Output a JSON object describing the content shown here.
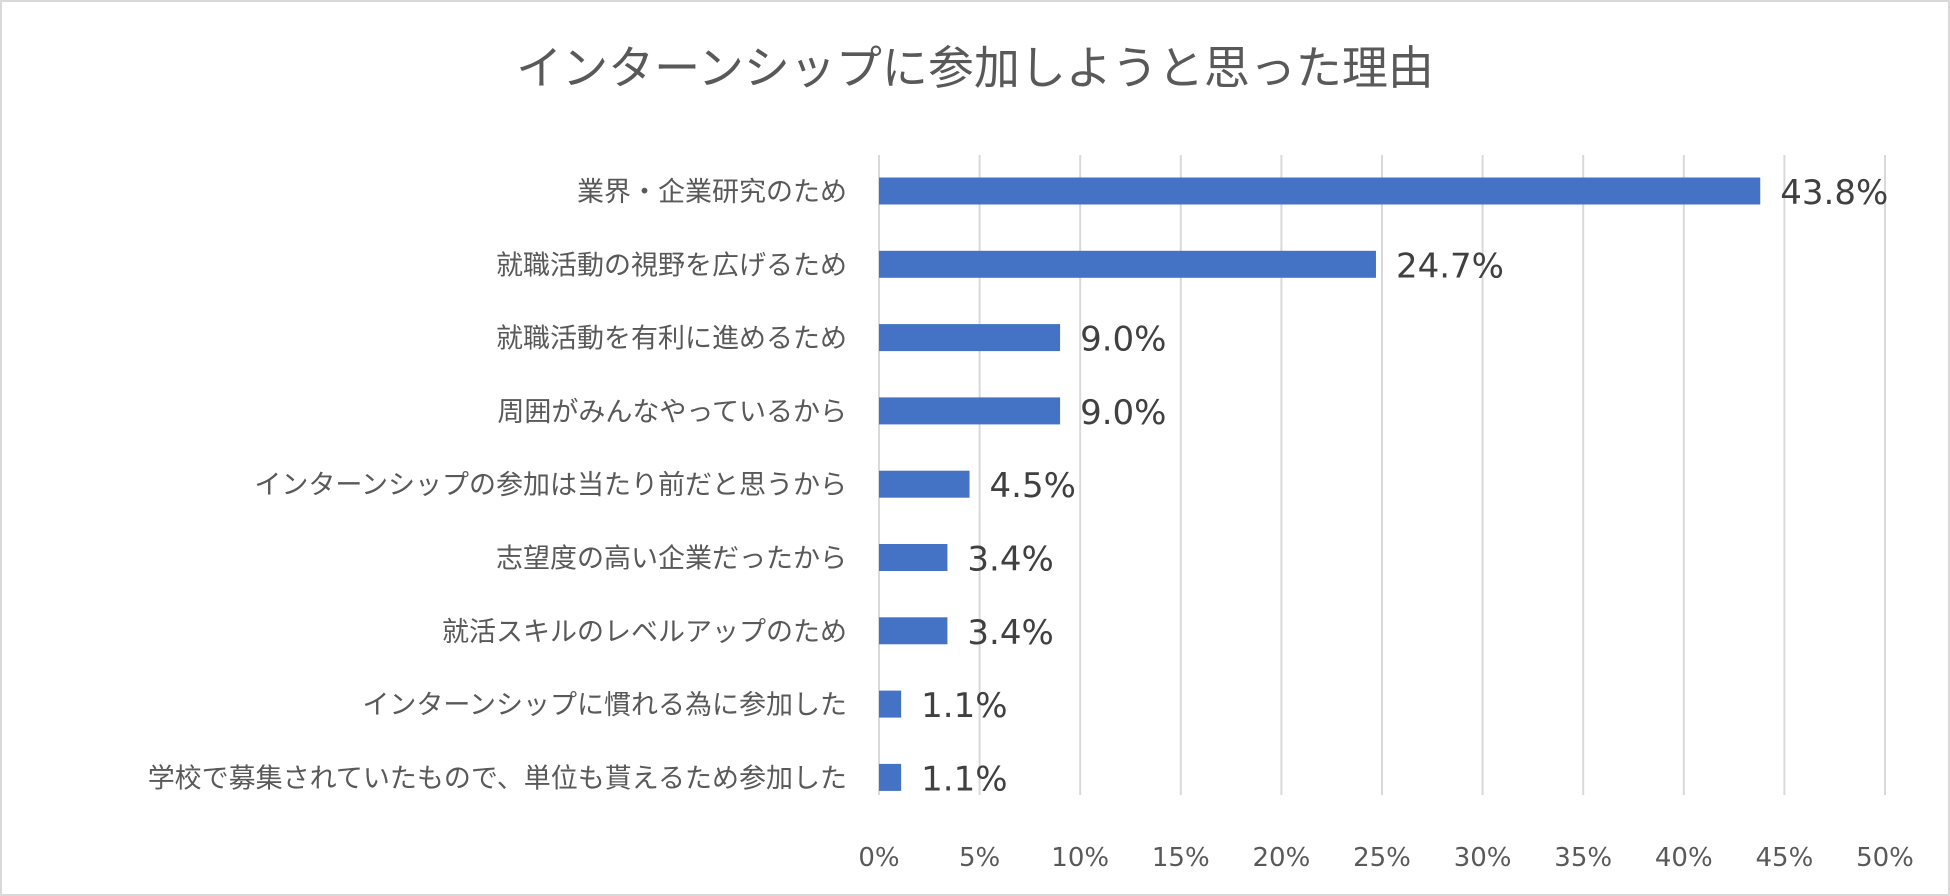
{
  "chart_data": {
    "type": "bar",
    "orientation": "horizontal",
    "title": "インターンシップに参加しようと思った理由",
    "categories": [
      "業界・企業研究のため",
      "就職活動の視野を広げるため",
      "就職活動を有利に進めるため",
      "周囲がみんなやっているから",
      "インターンシップの参加は当たり前だと思うから",
      "志望度の高い企業だったから",
      "就活スキルのレベルアップのため",
      "インターンシップに慣れる為に参加した",
      "学校で募集されていたもので、単位も貰えるため参加した"
    ],
    "values": [
      43.8,
      24.7,
      9.0,
      9.0,
      4.5,
      3.4,
      3.4,
      1.1,
      1.1
    ],
    "data_labels": [
      "43.8%",
      "24.7%",
      "9.0%",
      "9.0%",
      "4.5%",
      "3.4%",
      "3.4%",
      "1.1%",
      "1.1%"
    ],
    "xlim": [
      0,
      50
    ],
    "x_ticks": [
      "0%",
      "5%",
      "10%",
      "15%",
      "20%",
      "25%",
      "30%",
      "35%",
      "40%",
      "45%",
      "50%"
    ],
    "grid": "vertical",
    "legend": "none",
    "colors": {
      "bar": "#4472c4"
    }
  }
}
